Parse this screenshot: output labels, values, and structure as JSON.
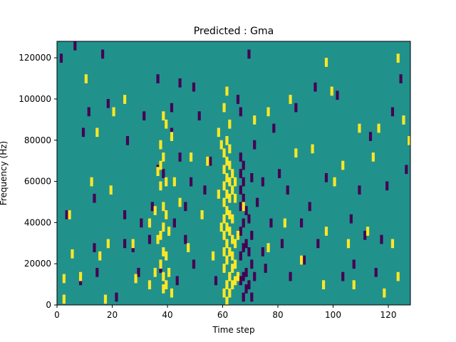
{
  "chart_data": {
    "type": "heatmap",
    "title": "Predicted : Gma",
    "xlabel": "Time step",
    "ylabel": "Frequency (Hz)",
    "xlim": [
      0,
      128
    ],
    "ylim": [
      0,
      128000
    ],
    "x_ticks": [
      0,
      20,
      40,
      60,
      80,
      100,
      120
    ],
    "y_ticks": [
      0,
      20000,
      40000,
      60000,
      80000,
      100000,
      120000
    ],
    "x_tick_labels": [
      "0",
      "20",
      "40",
      "60",
      "80",
      "100",
      "120"
    ],
    "y_tick_labels": [
      "0",
      "20000",
      "40000",
      "60000",
      "80000",
      "100000",
      "120000"
    ],
    "grid": false,
    "legend": "none",
    "colormap": "viridis",
    "levels": {
      "background": "#21918c",
      "high": "#fde725",
      "low": "#440154"
    },
    "sparse_cells_note_values": "high = yellow cells, low = purple cells, all other cells = background",
    "high_cells_by_column": {
      "2": [
        3000,
        13000
      ],
      "4": [
        44000
      ],
      "5": [
        25000
      ],
      "8": [
        14000
      ],
      "10": [
        110000
      ],
      "12": [
        60000
      ],
      "14": [
        84000
      ],
      "15": [
        24000
      ],
      "17": [
        3000
      ],
      "18": [
        30000
      ],
      "19": [
        56000
      ],
      "20": [
        94000
      ],
      "24": [
        100000
      ],
      "27": [
        30000
      ],
      "28": [
        13000
      ],
      "33": [
        10000,
        40000
      ],
      "35": [
        16000,
        46000
      ],
      "36": [
        32000,
        65000
      ],
      "37": [
        20000,
        34000,
        58000,
        68000,
        78000
      ],
      "38": [
        8000,
        14000,
        26000,
        38000,
        48000,
        72000,
        92000
      ],
      "39": [
        10000,
        24000,
        44000,
        60000,
        88000
      ],
      "40": [
        16000,
        36000
      ],
      "41": [
        6000,
        82000
      ],
      "42": [
        60000
      ],
      "44": [
        50000
      ],
      "47": [
        28000
      ],
      "48": [
        72000
      ],
      "52": [
        44000
      ],
      "54": [
        70000
      ],
      "56": [
        24000
      ],
      "58": [
        54000,
        84000
      ],
      "59": [
        38000,
        78000
      ],
      "60": [
        6000,
        18000,
        26000,
        34000,
        42000,
        50000,
        58000,
        66000,
        74000,
        96000
      ],
      "61": [
        2000,
        10000,
        22000,
        30000,
        38000,
        46000,
        54000,
        62000,
        70000,
        80000,
        104000
      ],
      "62": [
        6000,
        14000,
        26000,
        36000,
        44000,
        52000,
        60000,
        68000,
        76000,
        88000
      ],
      "63": [
        10000,
        18000,
        24000,
        32000,
        42000,
        56000,
        64000
      ],
      "64": [
        12000,
        20000,
        30000,
        52000,
        60000
      ],
      "65": [
        14000,
        34000
      ],
      "67": [
        48000
      ],
      "71": [
        90000
      ],
      "76": [
        28000,
        94000
      ],
      "82": [
        40000
      ],
      "84": [
        100000
      ],
      "86": [
        74000
      ],
      "88": [
        22000
      ],
      "92": [
        76000
      ],
      "96": [
        10000
      ],
      "97": [
        36000,
        118000
      ],
      "99": [
        104000
      ],
      "100": [
        60000
      ],
      "103": [
        68000
      ],
      "105": [
        30000
      ],
      "107": [
        10000
      ],
      "109": [
        86000
      ],
      "112": [
        36000
      ],
      "114": [
        72000
      ],
      "116": [
        86000
      ],
      "118": [
        6000
      ],
      "121": [
        30000
      ],
      "123": [
        14000,
        120000
      ],
      "125": [
        90000
      ],
      "127": [
        80000
      ]
    },
    "low_cells_by_column": {
      "1": [
        120000
      ],
      "3": [
        44000
      ],
      "6": [
        126000
      ],
      "8": [
        12000
      ],
      "9": [
        84000
      ],
      "11": [
        94000
      ],
      "13": [
        28000,
        52000
      ],
      "14": [
        16000
      ],
      "16": [
        122000
      ],
      "18": [
        98000
      ],
      "21": [
        4000
      ],
      "24": [
        30000,
        44000
      ],
      "25": [
        80000
      ],
      "27": [
        28000
      ],
      "29": [
        16000
      ],
      "30": [
        40000
      ],
      "31": [
        92000
      ],
      "33": [
        32000
      ],
      "34": [
        48000
      ],
      "36": [
        66000,
        110000
      ],
      "37": [
        18000
      ],
      "38": [
        64000
      ],
      "41": [
        84000,
        96000
      ],
      "42": [
        40000
      ],
      "43": [
        12000
      ],
      "44": [
        72000,
        108000
      ],
      "46": [
        32000,
        48000
      ],
      "48": [
        60000
      ],
      "49": [
        20000,
        106000
      ],
      "51": [
        92000
      ],
      "53": [
        56000
      ],
      "55": [
        70000
      ],
      "57": [
        12000
      ],
      "65": [
        100000
      ],
      "66": [
        12000,
        24000,
        36000,
        48000,
        56000,
        64000,
        72000,
        94000
      ],
      "67": [
        4000,
        14000,
        28000,
        40000,
        52000,
        60000,
        68000
      ],
      "68": [
        8000,
        16000,
        30000,
        46000
      ],
      "69": [
        10000,
        26000,
        42000,
        122000
      ],
      "70": [
        4000,
        20000,
        34000,
        62000
      ],
      "71": [
        14000,
        78000
      ],
      "72": [
        50000
      ],
      "74": [
        26000,
        60000
      ],
      "75": [
        18000
      ],
      "77": [
        40000
      ],
      "78": [
        86000
      ],
      "80": [
        64000
      ],
      "81": [
        30000
      ],
      "83": [
        56000
      ],
      "84": [
        14000
      ],
      "86": [
        96000
      ],
      "88": [
        40000
      ],
      "89": [
        22000
      ],
      "91": [
        48000
      ],
      "93": [
        106000
      ],
      "94": [
        30000
      ],
      "97": [
        62000
      ],
      "101": [
        102000
      ],
      "103": [
        14000
      ],
      "106": [
        42000
      ],
      "107": [
        20000
      ],
      "109": [
        56000
      ],
      "111": [
        34000
      ],
      "113": [
        82000
      ],
      "115": [
        16000
      ],
      "117": [
        32000
      ],
      "119": [
        58000
      ],
      "121": [
        94000
      ],
      "124": [
        110000
      ],
      "126": [
        66000
      ]
    }
  }
}
